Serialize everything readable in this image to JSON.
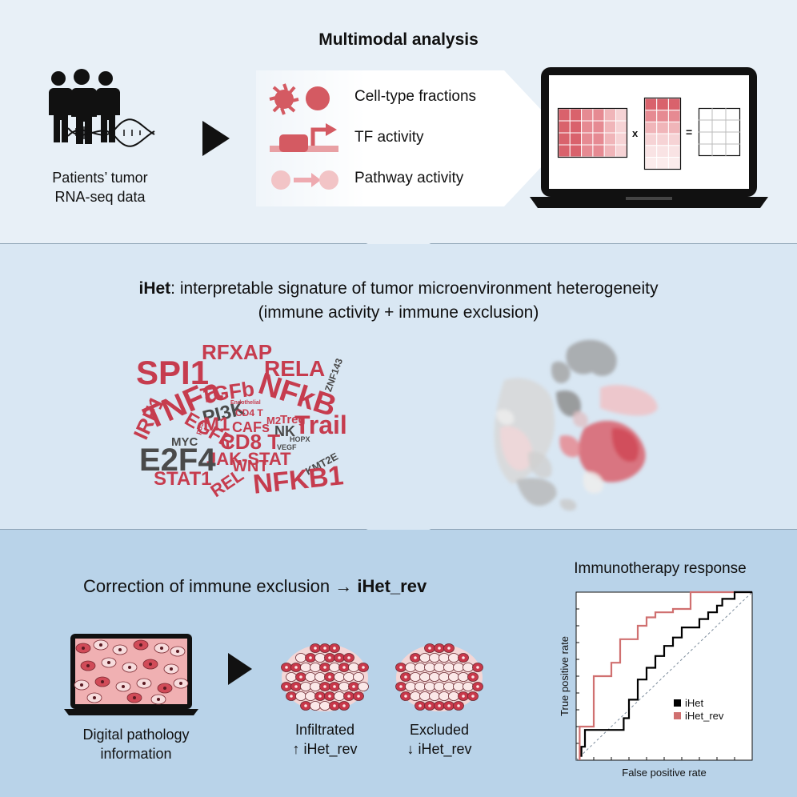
{
  "panel1": {
    "title": "Multimodal analysis",
    "patients_label_line1": "Patients’ tumor",
    "patients_label_line2": "RNA-seq data",
    "items": [
      "Cell-type fractions",
      "TF activity",
      "Pathway activity"
    ],
    "matrix_times": "x",
    "matrix_equals": "="
  },
  "panel2": {
    "title_bold": "iHet",
    "title_rest": ": interpretable signature of tumor microenvironment heterogeneity",
    "subtitle": "(immune activity + immune exclusion)",
    "wordcloud": [
      {
        "text": "SPI1",
        "color": "red"
      },
      {
        "text": "RFXAP",
        "color": "red"
      },
      {
        "text": "RELA",
        "color": "red"
      },
      {
        "text": "TGFb",
        "color": "red"
      },
      {
        "text": "ZNF143",
        "color": "gray"
      },
      {
        "text": "TNFa",
        "color": "red"
      },
      {
        "text": "NFkB",
        "color": "red"
      },
      {
        "text": "PI3K",
        "color": "gray"
      },
      {
        "text": "Treg",
        "color": "red"
      },
      {
        "text": "CD4 T",
        "color": "red"
      },
      {
        "text": "Endothelial",
        "color": "red"
      },
      {
        "text": "p53",
        "color": "red"
      },
      {
        "text": "M2",
        "color": "red"
      },
      {
        "text": "M1",
        "color": "red"
      },
      {
        "text": "CAFs",
        "color": "red"
      },
      {
        "text": "NK",
        "color": "gray"
      },
      {
        "text": "Trail",
        "color": "red"
      },
      {
        "text": "IRF1",
        "color": "red"
      },
      {
        "text": "EGFR",
        "color": "red"
      },
      {
        "text": "CD8 T",
        "color": "red"
      },
      {
        "text": "HOPX",
        "color": "gray"
      },
      {
        "text": "VEGF",
        "color": "gray"
      },
      {
        "text": "KMT2E",
        "color": "gray"
      },
      {
        "text": "MYC",
        "color": "gray"
      },
      {
        "text": "JAK-STAT",
        "color": "red"
      },
      {
        "text": "E2F4",
        "color": "gray"
      },
      {
        "text": "WNT",
        "color": "red"
      },
      {
        "text": "REL",
        "color": "red"
      },
      {
        "text": "STAT1",
        "color": "red"
      },
      {
        "text": "NFKB1",
        "color": "red"
      }
    ]
  },
  "panel3": {
    "title_plain": "Correction of immune exclusion → ",
    "title_bold": "iHet_rev",
    "pathology_line1": "Digital pathology",
    "pathology_line2": "information",
    "infiltrated_line1": "Infiltrated",
    "infiltrated_line2": "↑ iHet_rev",
    "excluded_line1": "Excluded",
    "excluded_line2": "↓ iHet_rev"
  },
  "chart_data": {
    "type": "line",
    "title": "Immunotherapy response",
    "xlabel": "False positive rate",
    "ylabel": "True positive rate",
    "xlim": [
      0,
      1
    ],
    "ylim": [
      0,
      1
    ],
    "colors": {
      "iHet": "#000000",
      "iHet_rev": "#d07070",
      "diagonal": "#7a8a9a"
    },
    "legend_position": "bottom-right",
    "series": [
      {
        "name": "iHet",
        "x": [
          0.03,
          0.03,
          0.05,
          0.05,
          0.27,
          0.27,
          0.3,
          0.3,
          0.35,
          0.35,
          0.4,
          0.4,
          0.45,
          0.45,
          0.5,
          0.5,
          0.55,
          0.55,
          0.6,
          0.6,
          0.7,
          0.7,
          0.75,
          0.75,
          0.8,
          0.8,
          0.83,
          0.83,
          0.9,
          0.9,
          1.0
        ],
        "y": [
          0.02,
          0.08,
          0.08,
          0.18,
          0.18,
          0.25,
          0.25,
          0.36,
          0.36,
          0.48,
          0.48,
          0.55,
          0.55,
          0.62,
          0.62,
          0.68,
          0.68,
          0.73,
          0.73,
          0.79,
          0.79,
          0.84,
          0.84,
          0.88,
          0.88,
          0.92,
          0.92,
          0.96,
          0.96,
          1.0,
          1.0
        ]
      },
      {
        "name": "iHet_rev",
        "x": [
          0.02,
          0.02,
          0.1,
          0.1,
          0.2,
          0.2,
          0.25,
          0.25,
          0.35,
          0.35,
          0.4,
          0.4,
          0.45,
          0.45,
          0.55,
          0.55,
          0.65,
          0.65,
          0.9,
          0.9,
          1.0
        ],
        "y": [
          0.0,
          0.2,
          0.2,
          0.5,
          0.5,
          0.58,
          0.58,
          0.72,
          0.72,
          0.8,
          0.8,
          0.85,
          0.85,
          0.88,
          0.88,
          0.9,
          0.9,
          1.0,
          1.0,
          1.0,
          1.0
        ]
      }
    ]
  }
}
